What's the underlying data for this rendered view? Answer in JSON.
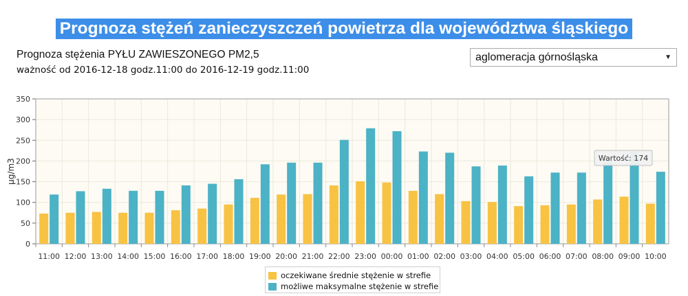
{
  "header": {
    "title": "Prognoza stężeń zanieczyszczeń powietrza dla województwa śląskiego",
    "subtitle": "Prognoza stężenia PYŁU ZAWIESZONEGO PM2,5",
    "validity": "ważność od 2016-12-18 godz.11:00 do 2016-12-19 godz.11:00"
  },
  "zone_select": {
    "value": "aglomeracja górnośląska",
    "arrow": "▼"
  },
  "colors": {
    "avg": "#f8c243",
    "max": "#4cb2c6",
    "plot_bg": "#fdfbf3",
    "grid": "#ebe8dc",
    "title_bg": "#3d8ee8"
  },
  "chart_data": {
    "type": "bar",
    "ylabel": "μg/m3",
    "ylim": [
      0,
      350
    ],
    "yticks": [
      0,
      50,
      100,
      150,
      200,
      250,
      300,
      350
    ],
    "grid": true,
    "legend_position": "bottom-center",
    "categories": [
      "11:00",
      "12:00",
      "13:00",
      "14:00",
      "15:00",
      "16:00",
      "17:00",
      "18:00",
      "19:00",
      "20:00",
      "21:00",
      "22:00",
      "23:00",
      "00:00",
      "01:00",
      "02:00",
      "03:00",
      "04:00",
      "05:00",
      "06:00",
      "07:00",
      "08:00",
      "09:00",
      "10:00"
    ],
    "series": [
      {
        "name": "oczekiwane średnie stężenie w strefie",
        "color": "#f8c243",
        "values": [
          73,
          75,
          77,
          75,
          75,
          81,
          85,
          95,
          111,
          119,
          120,
          141,
          151,
          148,
          128,
          120,
          103,
          101,
          91,
          93,
          95,
          107,
          114,
          97
        ]
      },
      {
        "name": "możliwe maksymalne stężenie w strefie",
        "color": "#4cb2c6",
        "values": [
          119,
          127,
          133,
          128,
          128,
          141,
          145,
          156,
          192,
          196,
          196,
          251,
          279,
          272,
          223,
          220,
          187,
          189,
          163,
          172,
          172,
          200,
          222,
          174
        ]
      }
    ],
    "tooltip": {
      "text": "Wartość: 174"
    }
  }
}
